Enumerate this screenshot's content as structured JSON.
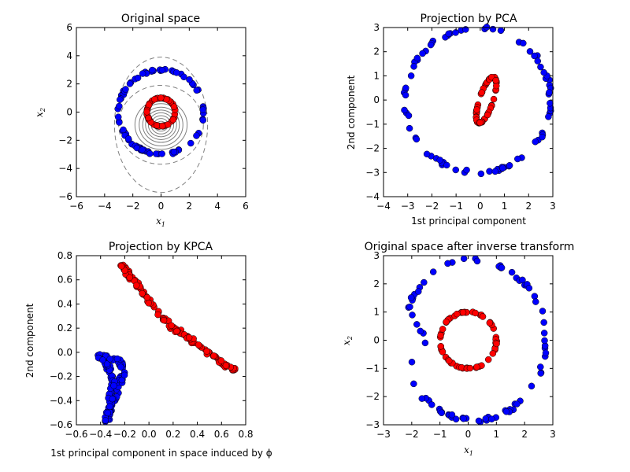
{
  "chart_data": [
    {
      "type": "scatter",
      "title": "Original space",
      "xlabel": "x_1",
      "ylabel": "x_2",
      "xlim": [
        -6,
        6
      ],
      "ylim": [
        -6,
        6
      ],
      "xticks": [
        -6,
        -4,
        -2,
        0,
        2,
        4,
        6
      ],
      "yticks": [
        -6,
        -4,
        -2,
        0,
        2,
        4,
        6
      ],
      "colors": {
        "inner": "#ff0000",
        "outer": "#0000ff",
        "contour": "#808080"
      },
      "inner": {
        "cx": 0.0,
        "cy": 0.0,
        "rx": 1.0,
        "ry": 1.0,
        "tilt": 0,
        "pinch": 0,
        "n": 60
      },
      "outer": {
        "cx": 0.0,
        "cy": 0.0,
        "rx": 3.0,
        "ry": 3.0,
        "tilt": 0,
        "pinch": 0,
        "n": 80
      },
      "contours": {
        "center": [
          0.0,
          -0.9
        ],
        "solid_levels": [
          [
            0.3,
            0.25
          ],
          [
            0.5,
            0.45
          ],
          [
            0.7,
            0.65
          ],
          [
            0.9,
            0.85
          ],
          [
            1.1,
            1.05
          ],
          [
            1.3,
            1.25
          ],
          [
            1.55,
            1.5
          ],
          [
            1.85,
            1.75
          ]
        ],
        "dashed_levels": [
          [
            3.0,
            2.8
          ],
          [
            3.3,
            4.8
          ]
        ]
      }
    },
    {
      "type": "scatter",
      "title": "Projection by PCA",
      "xlabel": "1st principal component",
      "ylabel": "2nd component",
      "xlim": [
        -4,
        3
      ],
      "ylim": [
        -4,
        3
      ],
      "xticks": [
        -4,
        -3,
        -2,
        -1,
        0,
        1,
        2,
        3
      ],
      "yticks": [
        -4,
        -3,
        -2,
        -1,
        0,
        1,
        2,
        3
      ],
      "colors": {
        "inner": "#ff0000",
        "outer": "#0000ff"
      },
      "inner": {
        "cx": 0.25,
        "cy": 0.0,
        "rx": 0.3,
        "ry": 0.95,
        "tilt": 0.3,
        "pinch": 0,
        "n": 60
      },
      "outer": {
        "cx": -0.1,
        "cy": 0.0,
        "rx": 3.0,
        "ry": 3.0,
        "tilt": 0,
        "pinch": 0,
        "n": 80
      }
    },
    {
      "type": "scatter",
      "title": "Projection by KPCA",
      "xlabel": "1st principal component in space induced by ϕ",
      "ylabel": "2nd component",
      "xlim": [
        -0.6,
        0.8
      ],
      "ylim": [
        -0.6,
        0.8
      ],
      "xticks": [
        -0.6,
        -0.4,
        -0.2,
        0.0,
        0.2,
        0.4,
        0.6,
        0.8
      ],
      "yticks": [
        -0.6,
        -0.4,
        -0.2,
        0.0,
        0.2,
        0.4,
        0.6,
        0.8
      ],
      "colors": {
        "inner": "#ff0000",
        "outer": "#0000ff"
      },
      "red_band": [
        [
          -0.23,
          0.73
        ],
        [
          -0.15,
          0.62
        ],
        [
          -0.05,
          0.5
        ],
        [
          0.02,
          0.4
        ],
        [
          0.1,
          0.3
        ],
        [
          0.18,
          0.22
        ],
        [
          0.3,
          0.14
        ],
        [
          0.42,
          0.05
        ],
        [
          0.52,
          -0.02
        ],
        [
          0.6,
          -0.09
        ],
        [
          0.7,
          -0.15
        ],
        [
          0.73,
          -0.17
        ]
      ],
      "blue_vee": [
        [
          -0.43,
          -0.03
        ],
        [
          -0.35,
          -0.04
        ],
        [
          -0.27,
          -0.06
        ],
        [
          -0.21,
          -0.12
        ],
        [
          -0.22,
          -0.2
        ],
        [
          -0.25,
          -0.3
        ],
        [
          -0.29,
          -0.4
        ],
        [
          -0.33,
          -0.5
        ],
        [
          -0.35,
          -0.56
        ],
        [
          -0.33,
          -0.45
        ],
        [
          -0.31,
          -0.35
        ],
        [
          -0.3,
          -0.22
        ],
        [
          -0.33,
          -0.12
        ],
        [
          -0.38,
          -0.05
        ],
        [
          -0.43,
          -0.03
        ]
      ]
    },
    {
      "type": "scatter",
      "title": "Original space after inverse transform",
      "xlabel": "x_1",
      "ylabel": "x_2",
      "xlim": [
        -3,
        3
      ],
      "ylim": [
        -3,
        3
      ],
      "xticks": [
        -3,
        -2,
        -1,
        0,
        1,
        2,
        3
      ],
      "yticks": [
        -3,
        -2,
        -1,
        0,
        1,
        2,
        3
      ],
      "colors": {
        "inner": "#ff0000",
        "outer": "#0000ff"
      },
      "inner": {
        "cx": 0.0,
        "cy": 0.0,
        "rx": 1.0,
        "ry": 1.0,
        "tilt": 0,
        "pinch": 0,
        "n": 60
      },
      "outer": {
        "cx": 0.2,
        "cy": 0.0,
        "rx": 2.55,
        "ry": 2.85,
        "tilt": 0,
        "pinch": 0.35,
        "n": 80
      }
    }
  ]
}
